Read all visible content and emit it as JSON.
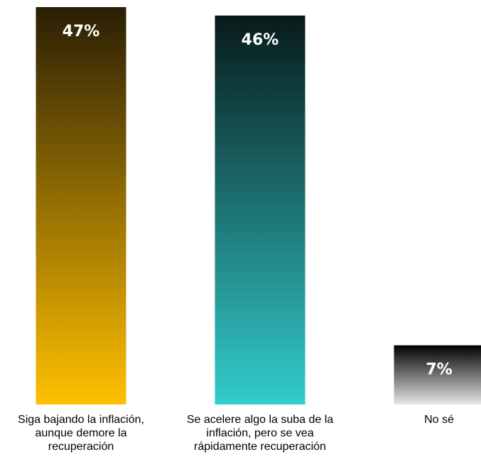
{
  "chart_data": {
    "type": "bar",
    "categories": [
      "Siga bajando la inflación,\naunque demore la\nrecuperación",
      "Se acelere algo la suba de la\ninflación, pero se vea\nrápidamente recuperación",
      "No sé"
    ],
    "values": [
      47,
      46,
      7
    ],
    "value_labels": [
      "47%",
      "46%",
      "7%"
    ],
    "unit": "%",
    "ylim": [
      0,
      47
    ],
    "grid": false,
    "axes_visible": false,
    "colors": [
      {
        "top": "#2a1e05",
        "bottom": "#ffc000"
      },
      {
        "top": "#081a1a",
        "bottom": "#33cccc"
      },
      {
        "top": "#000000",
        "bottom": "#e6e6e6"
      }
    ],
    "label_color": "#ffffff"
  }
}
